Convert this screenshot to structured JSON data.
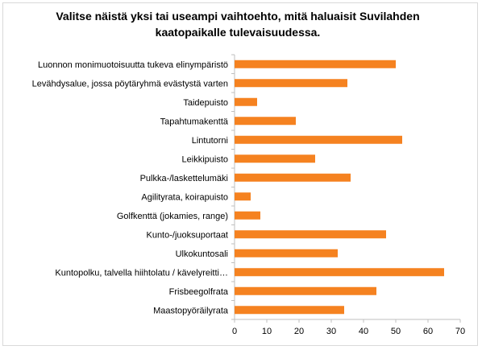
{
  "chart_data": {
    "type": "bar",
    "orientation": "horizontal",
    "title": "Valitse näistä yksi tai useampi vaihtoehto, mitä haluaisit Suvilahden kaatopaikalle tulevaisuudessa.",
    "categories": [
      "Luonnon monimuotoisuutta tukeva elinympäristö",
      "Levähdysalue, jossa pöytäryhmä evästystä varten",
      "Taidepuisto",
      "Tapahtumakenttä",
      "Lintutorni",
      "Leikkipuisto",
      "Pulkka-/laskettelumäki",
      "Agilityrata, koirapuisto",
      "Golfkenttä (jokamies, range)",
      "Kunto-/juoksuportaat",
      "Ulkokuntosali",
      "Kuntopolku, talvella hiihtolatu / kävelyreitti…",
      "Frisbeegolfrata",
      "Maastopyöräilyrata"
    ],
    "values": [
      50,
      35,
      7,
      19,
      52,
      25,
      36,
      5,
      8,
      47,
      32,
      65,
      44,
      34
    ],
    "xlim": [
      0,
      70
    ],
    "xticks": [
      0,
      10,
      20,
      30,
      40,
      50,
      60,
      70
    ],
    "bar_color": "#f58220",
    "grid": false,
    "legend": "none"
  }
}
